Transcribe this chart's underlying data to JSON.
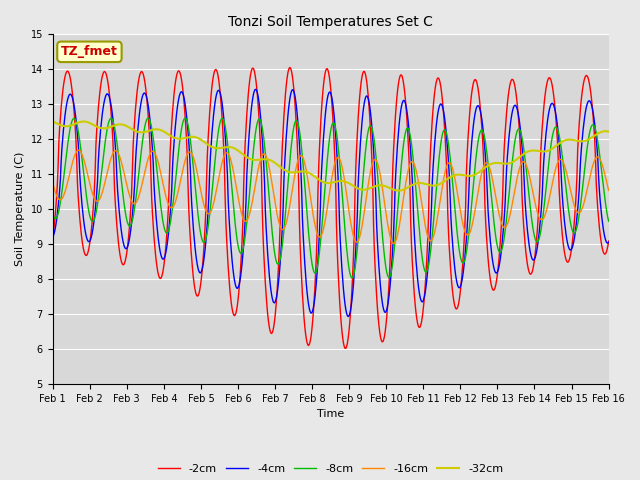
{
  "title": "Tonzi Soil Temperatures Set C",
  "xlabel": "Time",
  "ylabel": "Soil Temperature (C)",
  "ylim": [
    5.0,
    15.0
  ],
  "yticks": [
    5.0,
    6.0,
    7.0,
    8.0,
    9.0,
    10.0,
    11.0,
    12.0,
    13.0,
    14.0,
    15.0
  ],
  "xtick_labels": [
    "Feb 1",
    "Feb 2",
    "Feb 3",
    "Feb 4",
    "Feb 5",
    "Feb 6",
    "Feb 7",
    "Feb 8",
    "Feb 9",
    "Feb 10",
    "Feb 11",
    "Feb 12",
    "Feb 13",
    "Feb 14",
    "Feb 15",
    "Feb 16"
  ],
  "legend_labels": [
    "-2cm",
    "-4cm",
    "-8cm",
    "-16cm",
    "-32cm"
  ],
  "colors": [
    "#ff0000",
    "#0000ff",
    "#00bb00",
    "#ff8800",
    "#cccc00"
  ],
  "annotation_text": "TZ_fmet",
  "annotation_color": "#cc0000",
  "annotation_bg": "#ffffcc",
  "bg_color": "#e8e8e8",
  "plot_bg": "#d8d8d8",
  "n_points": 720,
  "n_days": 15
}
